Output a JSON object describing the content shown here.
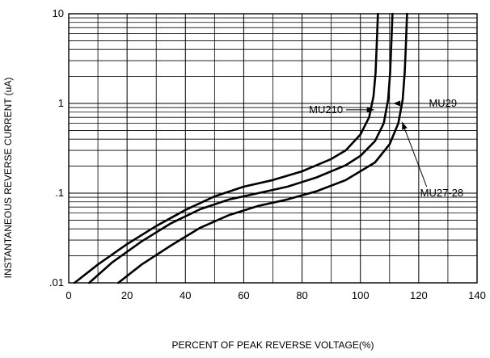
{
  "chart_data": {
    "type": "line",
    "title": "",
    "xlabel": "PERCENT OF PEAK REVERSE VOLTAGE(%)",
    "ylabel": "INSTANTANEOUS REVERSE CURRENT (uA)",
    "xlim": [
      0,
      140
    ],
    "ylim": [
      0.01,
      10
    ],
    "yscale": "log",
    "xticks": [
      "0",
      "20",
      "40",
      "60",
      "80",
      "100",
      "120",
      "140"
    ],
    "yticks": [
      ".01",
      ".1",
      "1",
      "10"
    ],
    "grid": true,
    "series": [
      {
        "name": "MU210",
        "x": [
          2,
          10,
          20,
          30,
          40,
          50,
          60,
          70,
          80,
          90,
          95,
          100,
          103,
          104.5,
          105.2,
          105.6,
          106
        ],
        "y": [
          0.01,
          0.016,
          0.027,
          0.043,
          0.065,
          0.092,
          0.118,
          0.14,
          0.175,
          0.24,
          0.3,
          0.45,
          0.7,
          1.2,
          2.2,
          4.5,
          10
        ]
      },
      {
        "name": "MU29",
        "x": [
          7,
          15,
          25,
          35,
          45,
          55,
          65,
          75,
          85,
          95,
          100,
          105,
          108,
          109.5,
          110.2,
          110.6,
          111
        ],
        "y": [
          0.01,
          0.017,
          0.029,
          0.046,
          0.066,
          0.085,
          0.1,
          0.118,
          0.15,
          0.205,
          0.26,
          0.38,
          0.6,
          1.1,
          2.2,
          4.5,
          10
        ]
      },
      {
        "name": "MU27-28",
        "x": [
          17,
          25,
          35,
          45,
          55,
          65,
          75,
          85,
          95,
          105,
          110,
          113,
          114.5,
          115.2,
          115.6,
          116
        ],
        "y": [
          0.01,
          0.016,
          0.026,
          0.041,
          0.057,
          0.072,
          0.085,
          0.105,
          0.14,
          0.22,
          0.35,
          0.6,
          1.1,
          2.2,
          4.5,
          10
        ]
      }
    ],
    "annotations": [
      {
        "text": "MU210",
        "points_to": "MU210",
        "tx": 94,
        "ty": 0.85,
        "ax": 104.7,
        "ay": 0.85
      },
      {
        "text": "MU29",
        "points_to": "MU29",
        "tx": 123.5,
        "ty": 1.0,
        "ax": 111.2,
        "ay": 1.0
      },
      {
        "text": "MU27-28",
        "points_to": "MU27-28",
        "tx": 120.5,
        "ty": 0.1,
        "ax": 114.3,
        "ay": 0.62
      }
    ]
  }
}
